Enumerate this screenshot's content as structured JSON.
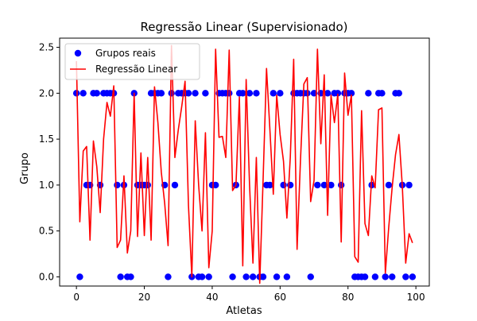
{
  "chart_data": {
    "type": "scatter+line",
    "title": "Regressão Linear (Supervisionado)",
    "xlabel": "Atletas",
    "ylabel": "Grupo",
    "xlim": [
      -4.95,
      103.95
    ],
    "ylim": [
      -0.1,
      2.6
    ],
    "x_ticks": [
      0,
      20,
      40,
      60,
      80,
      100
    ],
    "x_tick_labels": [
      "0",
      "20",
      "40",
      "60",
      "80",
      "100"
    ],
    "y_ticks": [
      0.0,
      0.5,
      1.0,
      1.5,
      2.0,
      2.5
    ],
    "y_tick_labels": [
      "0.0",
      "0.5",
      "1.0",
      "1.5",
      "2.0",
      "2.5"
    ],
    "grid": false,
    "legend_position": "upper left",
    "legend": [
      {
        "label": "Grupos reais",
        "marker": "circle",
        "color": "#0000ff"
      },
      {
        "label": "Regressão Linear",
        "marker": "line",
        "color": "#ff0000"
      }
    ],
    "series": [
      {
        "name": "Grupos reais",
        "type": "scatter",
        "color": "#0000ff",
        "x": [
          0,
          1,
          2,
          3,
          4,
          5,
          6,
          7,
          8,
          9,
          10,
          11,
          12,
          13,
          14,
          15,
          16,
          17,
          18,
          19,
          20,
          21,
          22,
          23,
          24,
          25,
          26,
          27,
          28,
          29,
          30,
          31,
          32,
          33,
          34,
          35,
          36,
          37,
          38,
          39,
          40,
          41,
          42,
          43,
          44,
          45,
          46,
          47,
          48,
          49,
          50,
          51,
          52,
          53,
          54,
          55,
          56,
          57,
          58,
          59,
          60,
          61,
          62,
          63,
          64,
          65,
          66,
          67,
          68,
          69,
          70,
          71,
          72,
          73,
          74,
          75,
          76,
          77,
          78,
          79,
          80,
          81,
          82,
          83,
          84,
          85,
          86,
          87,
          88,
          89,
          90,
          91,
          92,
          93,
          94,
          95,
          96,
          97,
          98,
          99
        ],
        "y": [
          2,
          0,
          2,
          1,
          1,
          2,
          2,
          1,
          2,
          2,
          2,
          2,
          1,
          0,
          1,
          0,
          0,
          2,
          1,
          1,
          1,
          1,
          2,
          2,
          2,
          2,
          1,
          0,
          2,
          1,
          2,
          2,
          2,
          2,
          0,
          2,
          0,
          0,
          2,
          0,
          1,
          1,
          2,
          2,
          2,
          2,
          0,
          1,
          2,
          2,
          0,
          2,
          0,
          2,
          0,
          0,
          1,
          1,
          2,
          0,
          2,
          1,
          0,
          1,
          2,
          2,
          2,
          2,
          2,
          0,
          2,
          1,
          2,
          1,
          2,
          1,
          2,
          2,
          1,
          2,
          2,
          2,
          0,
          0,
          0,
          0,
          2,
          1,
          0,
          2,
          2,
          0,
          1,
          0,
          2,
          2,
          1,
          0,
          1,
          0
        ]
      },
      {
        "name": "Regressão Linear",
        "type": "line",
        "color": "#ff0000",
        "x": [
          0,
          1,
          2,
          3,
          4,
          5,
          6,
          7,
          8,
          9,
          10,
          11,
          12,
          13,
          14,
          15,
          16,
          17,
          18,
          19,
          20,
          21,
          22,
          23,
          24,
          25,
          26,
          27,
          28,
          29,
          30,
          31,
          32,
          33,
          34,
          35,
          36,
          37,
          38,
          39,
          40,
          41,
          42,
          43,
          44,
          45,
          46,
          47,
          48,
          49,
          50,
          51,
          52,
          53,
          54,
          55,
          56,
          57,
          58,
          59,
          60,
          61,
          62,
          63,
          64,
          65,
          66,
          67,
          68,
          69,
          70,
          71,
          72,
          73,
          74,
          75,
          76,
          77,
          78,
          79,
          80,
          81,
          82,
          83,
          84,
          85,
          86,
          87,
          88,
          89,
          90,
          91,
          92,
          93,
          94,
          95,
          96,
          97,
          98,
          99
        ],
        "y": [
          2.35,
          0.6,
          1.37,
          1.42,
          0.4,
          1.48,
          1.2,
          0.7,
          1.5,
          1.9,
          1.75,
          2.08,
          0.32,
          0.4,
          1.1,
          0.26,
          0.5,
          2.0,
          0.44,
          1.35,
          0.45,
          1.3,
          0.4,
          2.07,
          1.68,
          1.14,
          0.8,
          0.34,
          2.52,
          1.3,
          1.6,
          1.85,
          2.13,
          0.78,
          0.0,
          1.7,
          1.0,
          0.5,
          1.57,
          0.1,
          0.5,
          2.48,
          1.52,
          1.53,
          1.3,
          2.47,
          0.94,
          1.0,
          1.96,
          0.12,
          2.15,
          1.0,
          0.15,
          1.3,
          -0.07,
          1.07,
          2.27,
          1.6,
          0.9,
          1.98,
          1.55,
          1.26,
          0.64,
          1.3,
          2.37,
          0.3,
          1.27,
          2.1,
          2.17,
          0.82,
          1.05,
          2.48,
          1.45,
          2.2,
          0.67,
          1.98,
          1.68,
          1.99,
          0.38,
          2.22,
          1.76,
          1.98,
          0.22,
          0.16,
          1.81,
          0.58,
          0.45,
          1.1,
          0.97,
          1.82,
          1.84,
          0.04,
          0.54,
          0.97,
          1.33,
          1.55,
          0.99,
          0.15,
          0.47,
          0.37
        ]
      }
    ]
  }
}
